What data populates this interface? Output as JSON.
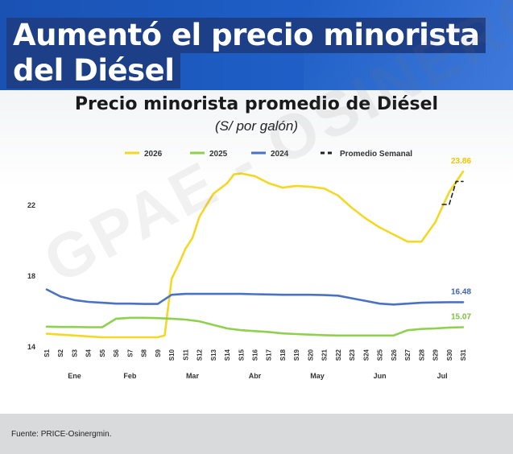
{
  "header": {
    "title_line1": "Aumentó el precio minorista",
    "title_line2": "del Diésel"
  },
  "colors": {
    "header_blue": "#1e5fc7",
    "headline_box": "#1d3f87",
    "series_2026": "#f5d726",
    "series_2025": "#8fd14f",
    "series_2024": "#4a72c4"
  },
  "watermark": "GPAE - OSINERG",
  "footer": {
    "source": "Fuente: PRICE-Osinergmin."
  },
  "chart_data": {
    "type": "line",
    "title": "Precio minorista promedio de Diésel",
    "subtitle": "(S/ por galón)",
    "legend_position": "top",
    "grid": false,
    "ylim": [
      14,
      24
    ],
    "yticks": [
      14,
      18,
      22
    ],
    "xticks": [
      "S1",
      "S2",
      "S3",
      "S4",
      "S5",
      "S6",
      "S7",
      "S8",
      "S9",
      "S10",
      "S11",
      "S12",
      "S13",
      "S14",
      "S15",
      "S16",
      "S17",
      "S18",
      "S19",
      "S20",
      "S21",
      "S22",
      "S23",
      "S24",
      "S25",
      "S26",
      "S27",
      "S28",
      "S29",
      "S30",
      "S31"
    ],
    "months": [
      {
        "label": "Ene",
        "week": 3
      },
      {
        "label": "Feb",
        "week": 7
      },
      {
        "label": "Mar",
        "week": 11.5
      },
      {
        "label": "Abr",
        "week": 16
      },
      {
        "label": "May",
        "week": 20.5
      },
      {
        "label": "Jun",
        "week": 25
      },
      {
        "label": "Jul",
        "week": 29.5
      }
    ],
    "series": [
      {
        "name": "2026",
        "color": "#f5d726",
        "end_label": "23.86",
        "x": [
          1,
          2,
          3,
          4,
          5,
          6,
          7,
          8,
          9,
          9.5,
          10,
          10.5,
          11,
          11.5,
          12,
          13,
          14,
          14.5,
          15,
          16,
          17,
          18,
          19,
          20,
          21,
          22,
          23,
          24,
          25,
          26,
          27,
          28,
          29,
          30,
          31
        ],
        "y": [
          14.7,
          14.65,
          14.6,
          14.55,
          14.5,
          14.5,
          14.5,
          14.5,
          14.5,
          14.6,
          17.8,
          18.6,
          19.5,
          20.1,
          21.3,
          22.6,
          23.2,
          23.7,
          23.75,
          23.6,
          23.2,
          22.95,
          23.05,
          23.0,
          22.9,
          22.5,
          21.8,
          21.2,
          20.7,
          20.3,
          19.9,
          19.9,
          21.0,
          22.7,
          23.86
        ]
      },
      {
        "name": "2025",
        "color": "#8fd14f",
        "end_label": "15.07",
        "x": [
          1,
          2,
          3,
          4,
          5,
          6,
          7,
          8,
          9,
          10,
          11,
          12,
          13,
          14,
          15,
          16,
          17,
          18,
          19,
          20,
          21,
          22,
          23,
          24,
          25,
          26,
          27,
          28,
          29,
          30,
          31
        ],
        "y": [
          15.1,
          15.08,
          15.08,
          15.07,
          15.07,
          15.55,
          15.6,
          15.6,
          15.58,
          15.55,
          15.5,
          15.4,
          15.2,
          15.0,
          14.9,
          14.85,
          14.8,
          14.72,
          14.68,
          14.65,
          14.62,
          14.6,
          14.6,
          14.6,
          14.6,
          14.6,
          14.9,
          14.97,
          15.0,
          15.05,
          15.07
        ]
      },
      {
        "name": "2024",
        "color": "#4a72c4",
        "end_label": "16.48",
        "x": [
          1,
          2,
          3,
          4,
          5,
          6,
          7,
          8,
          9,
          10,
          11,
          12,
          13,
          14,
          15,
          16,
          17,
          18,
          19,
          20,
          21,
          22,
          23,
          24,
          25,
          26,
          27,
          28,
          29,
          30,
          31
        ],
        "y": [
          17.2,
          16.8,
          16.6,
          16.5,
          16.45,
          16.4,
          16.4,
          16.38,
          16.38,
          16.9,
          16.95,
          16.95,
          16.95,
          16.95,
          16.95,
          16.93,
          16.92,
          16.9,
          16.9,
          16.9,
          16.88,
          16.85,
          16.7,
          16.55,
          16.4,
          16.35,
          16.4,
          16.45,
          16.47,
          16.48,
          16.48
        ]
      },
      {
        "name": "Promedio Semanal",
        "color": "#222222",
        "dashed": true,
        "x": [
          29.5,
          30,
          30.5,
          31
        ],
        "y": [
          22.0,
          22.0,
          23.3,
          23.3
        ]
      }
    ]
  }
}
